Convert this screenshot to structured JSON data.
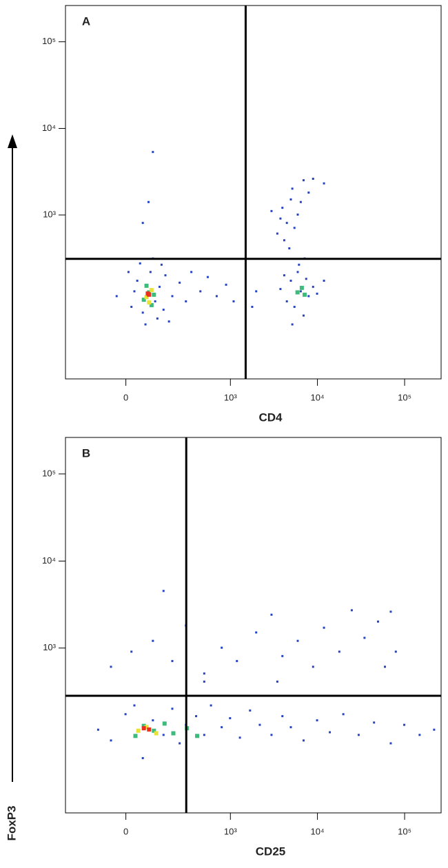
{
  "figure": {
    "ylabel": "FoxP3"
  },
  "chart_data": [
    {
      "type": "scatter",
      "panel": "A",
      "xlabel": "CD4",
      "xscale": "biexponential",
      "yscale": "biexponential",
      "xlim": [
        -300,
        262144
      ],
      "ylim": [
        -300,
        262144
      ],
      "xticks": [
        0,
        {
          "value": 1000,
          "label": "10³"
        },
        {
          "value": 10000,
          "label": "10⁴"
        },
        {
          "value": 100000,
          "label": "10⁵"
        }
      ],
      "yticks": [
        {
          "value": 1000,
          "label": "10³"
        },
        {
          "value": 10000,
          "label": "10⁴"
        },
        {
          "value": 100000,
          "label": "10⁵"
        }
      ],
      "gates": {
        "x": 1500,
        "y": 300
      },
      "series": [
        {
          "color": "#2544c4",
          "x": [
            20,
            40,
            60,
            90,
            110,
            130,
            150,
            50,
            70,
            100,
            160,
            200,
            250,
            300,
            350,
            450,
            550,
            700,
            900,
            1100,
            30,
            140,
            180,
            10,
            -30,
            120,
            82,
            100,
            60,
            4500,
            5000,
            5500,
            6000,
            6500,
            7000,
            7500,
            8000,
            9000,
            5200,
            4200,
            6200,
            7200,
            10000,
            3800,
            12000,
            2000,
            1800,
            3500,
            4000,
            4500,
            5000,
            5500,
            6000,
            4200,
            3800,
            5200,
            6500,
            7000,
            3000,
            8000,
            4800,
            9000,
            12000
          ],
          "values": [
            40,
            150,
            20,
            200,
            60,
            120,
            30,
            260,
            -20,
            300,
            180,
            80,
            140,
            60,
            200,
            100,
            170,
            80,
            130,
            60,
            100,
            250,
            -10,
            200,
            80,
            0,
            1400,
            5300,
            800,
            60,
            150,
            40,
            200,
            100,
            10,
            160,
            80,
            120,
            -20,
            180,
            250,
            300,
            90,
            110,
            150,
            100,
            40,
            600,
            1200,
            800,
            1500,
            700,
            1000,
            500,
            900,
            2000,
            1400,
            2500,
            1100,
            1800,
            400,
            2600,
            2300
          ]
        },
        {
          "color": "#3dbb7a",
          "x": [
            60,
            80,
            100,
            70,
            90,
            5800,
            6500,
            7000
          ],
          "values": [
            70,
            100,
            90,
            130,
            50,
            100,
            120,
            90
          ]
        },
        {
          "color": "#e6e23a",
          "x": [
            70,
            90,
            80
          ],
          "values": [
            80,
            110,
            60
          ]
        },
        {
          "color": "#e8321e",
          "x": [
            80,
            75
          ],
          "values": [
            90,
            95
          ]
        }
      ]
    },
    {
      "type": "scatter",
      "panel": "B",
      "xlabel": "CD25",
      "xscale": "biexponential",
      "yscale": "biexponential",
      "xlim": [
        -300,
        262144
      ],
      "ylim": [
        -300,
        262144
      ],
      "xticks": [
        0,
        {
          "value": 1000,
          "label": "10³"
        },
        {
          "value": 10000,
          "label": "10⁴"
        },
        {
          "value": 100000,
          "label": "10⁵"
        }
      ],
      "yticks": [
        {
          "value": 1000,
          "label": "10³"
        },
        {
          "value": 10000,
          "label": "10⁴"
        },
        {
          "value": 100000,
          "label": "10⁵"
        }
      ],
      "gates": {
        "x": 300,
        "y": 270
      },
      "series": [
        {
          "color": "#2544c4",
          "x": [
            -100,
            -50,
            0,
            30,
            60,
            100,
            150,
            200,
            250,
            300,
            400,
            500,
            600,
            800,
            1000,
            1300,
            1700,
            2200,
            3000,
            4000,
            5000,
            7000,
            10000,
            14000,
            20000,
            30000,
            45000,
            70000,
            100000,
            150000,
            220000,
            -50,
            20,
            100,
            150,
            200,
            300,
            500,
            800,
            1200,
            2000,
            3000,
            4000,
            6000,
            9000,
            12000,
            18000,
            25000,
            35000,
            50000,
            70000,
            80000,
            60000,
            500,
            3500
          ],
          "values": [
            80,
            40,
            150,
            200,
            -20,
            120,
            60,
            180,
            30,
            100,
            140,
            60,
            200,
            90,
            130,
            50,
            170,
            100,
            60,
            140,
            90,
            40,
            120,
            70,
            150,
            60,
            110,
            30,
            100,
            60,
            80,
            600,
            900,
            1200,
            4500,
            700,
            1800,
            500,
            1000,
            700,
            1500,
            2400,
            800,
            1200,
            600,
            1700,
            900,
            2700,
            1300,
            2000,
            2600,
            900,
            600,
            400,
            400
          ]
        },
        {
          "color": "#3dbb7a",
          "x": [
            30,
            60,
            100,
            150,
            200,
            300,
            400
          ],
          "values": [
            60,
            100,
            80,
            110,
            70,
            90,
            60
          ]
        },
        {
          "color": "#e6e23a",
          "x": [
            40,
            70,
            110
          ],
          "values": [
            80,
            95,
            70
          ]
        },
        {
          "color": "#e8321e",
          "x": [
            60,
            80
          ],
          "values": [
            90,
            85
          ]
        }
      ]
    }
  ]
}
